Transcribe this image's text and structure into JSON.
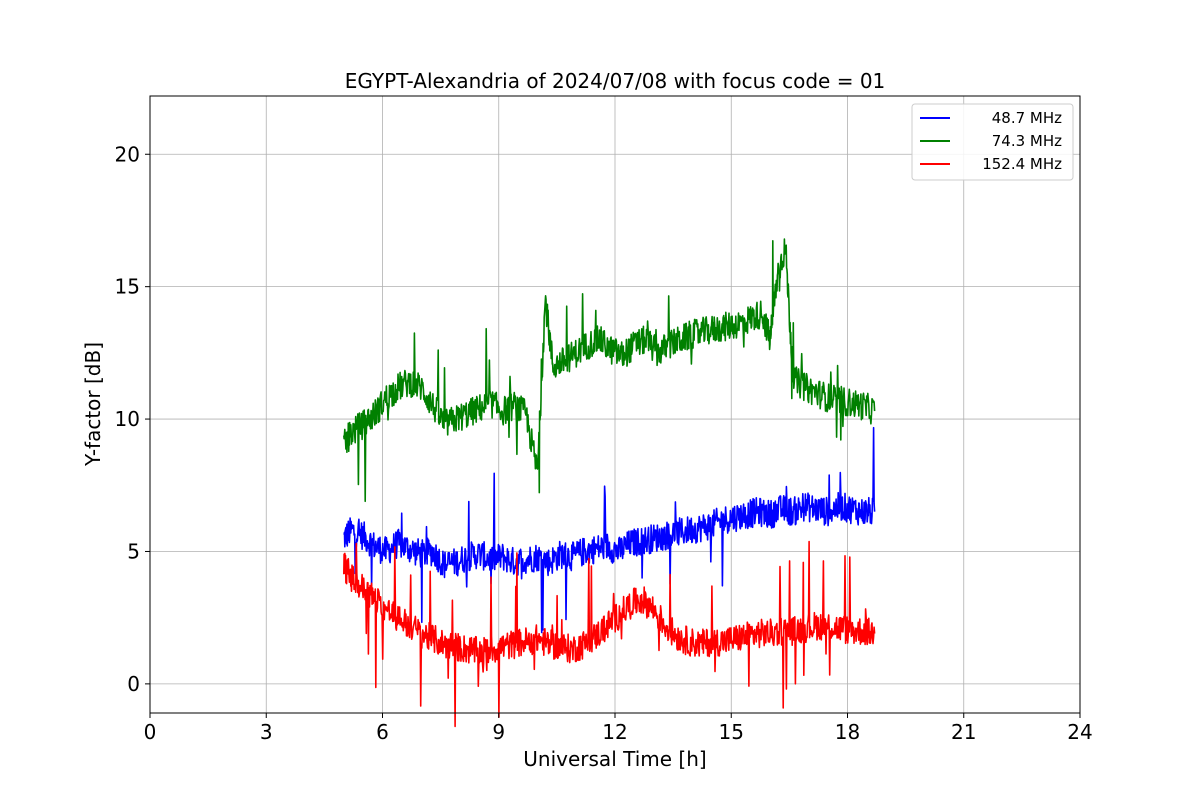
{
  "chart_data": {
    "type": "line",
    "title": "EGYPT-Alexandria of 2024/07/08 with focus code = 01",
    "xlabel": "Universal Time [h]",
    "ylabel": "Y-factor [dB]",
    "xlim": [
      0,
      24
    ],
    "ylim": [
      -1.1,
      22.2
    ],
    "xticks": [
      0,
      3,
      6,
      9,
      12,
      15,
      18,
      21,
      24
    ],
    "yticks": [
      0,
      5,
      10,
      15,
      20
    ],
    "grid": true,
    "legend_position": "top-right",
    "series": [
      {
        "name": "48.7 MHz",
        "color": "#0000ff",
        "x": [
          5.0,
          5.2,
          5.5,
          5.8,
          6.1,
          6.4,
          6.7,
          7.0,
          7.3,
          7.6,
          7.9,
          8.2,
          8.5,
          8.8,
          9.1,
          9.4,
          9.7,
          10.0,
          10.3,
          10.6,
          10.9,
          11.2,
          11.5,
          11.8,
          12.1,
          12.4,
          12.7,
          13.0,
          13.3,
          13.6,
          13.9,
          14.2,
          14.5,
          14.8,
          15.1,
          15.4,
          15.7,
          16.0,
          16.3,
          16.6,
          16.9,
          17.2,
          17.5,
          17.8,
          18.1,
          18.4,
          18.7
        ],
        "y": [
          5.5,
          5.8,
          5.6,
          5.2,
          5.0,
          5.3,
          5.1,
          4.9,
          5.0,
          4.5,
          4.6,
          4.8,
          4.9,
          4.7,
          4.8,
          4.6,
          4.7,
          4.8,
          4.6,
          4.9,
          4.8,
          5.0,
          5.1,
          5.2,
          5.0,
          5.3,
          5.4,
          5.5,
          5.6,
          5.7,
          5.8,
          5.9,
          6.0,
          6.2,
          6.3,
          6.4,
          6.5,
          6.4,
          6.6,
          6.5,
          6.7,
          6.6,
          6.5,
          6.7,
          6.6,
          6.5,
          6.5
        ]
      },
      {
        "name": "74.3 MHz",
        "color": "#008000",
        "x": [
          5.0,
          5.2,
          5.5,
          5.8,
          6.1,
          6.4,
          6.7,
          7.0,
          7.3,
          7.6,
          7.9,
          8.2,
          8.5,
          8.8,
          9.1,
          9.4,
          9.7,
          10.0,
          10.2,
          10.4,
          10.7,
          11.0,
          11.3,
          11.6,
          11.9,
          12.2,
          12.5,
          12.8,
          13.1,
          13.4,
          13.7,
          14.0,
          14.3,
          14.6,
          14.9,
          15.2,
          15.5,
          15.8,
          16.0,
          16.2,
          16.4,
          16.6,
          16.9,
          17.2,
          17.5,
          17.8,
          18.1,
          18.4,
          18.7
        ],
        "y": [
          9.0,
          9.5,
          9.8,
          10.2,
          10.8,
          11.2,
          11.4,
          11.2,
          10.5,
          9.8,
          10.0,
          10.2,
          10.4,
          10.6,
          10.3,
          10.5,
          10.2,
          8.0,
          14.5,
          12.0,
          12.2,
          12.5,
          12.8,
          13.0,
          12.6,
          12.4,
          12.8,
          13.0,
          12.5,
          12.8,
          13.0,
          13.2,
          13.3,
          13.4,
          13.5,
          13.6,
          13.8,
          14.0,
          13.0,
          15.5,
          16.5,
          11.5,
          11.2,
          11.0,
          10.8,
          10.7,
          10.6,
          10.5,
          10.3
        ]
      },
      {
        "name": "152.4 MHz",
        "color": "#ff0000",
        "x": [
          5.0,
          5.2,
          5.5,
          5.8,
          6.1,
          6.4,
          6.7,
          7.0,
          7.3,
          7.6,
          7.9,
          8.2,
          8.5,
          8.8,
          9.1,
          9.4,
          9.7,
          10.0,
          10.3,
          10.6,
          10.9,
          11.2,
          11.5,
          11.8,
          12.1,
          12.4,
          12.7,
          13.0,
          13.3,
          13.6,
          13.9,
          14.2,
          14.5,
          14.8,
          15.1,
          15.4,
          15.7,
          16.0,
          16.3,
          16.6,
          16.9,
          17.2,
          17.5,
          17.8,
          18.1,
          18.4,
          18.7
        ],
        "y": [
          4.5,
          4.0,
          3.6,
          3.2,
          2.8,
          2.5,
          2.2,
          1.9,
          1.7,
          1.5,
          1.4,
          1.3,
          1.2,
          1.3,
          1.4,
          1.5,
          1.6,
          1.7,
          1.5,
          1.4,
          1.3,
          1.5,
          1.8,
          2.2,
          2.6,
          3.0,
          3.2,
          2.8,
          2.2,
          1.8,
          1.6,
          1.5,
          1.6,
          1.6,
          1.7,
          1.8,
          1.9,
          1.9,
          2.0,
          2.0,
          2.1,
          2.2,
          2.2,
          2.1,
          2.0,
          2.0,
          1.9
        ]
      }
    ]
  }
}
